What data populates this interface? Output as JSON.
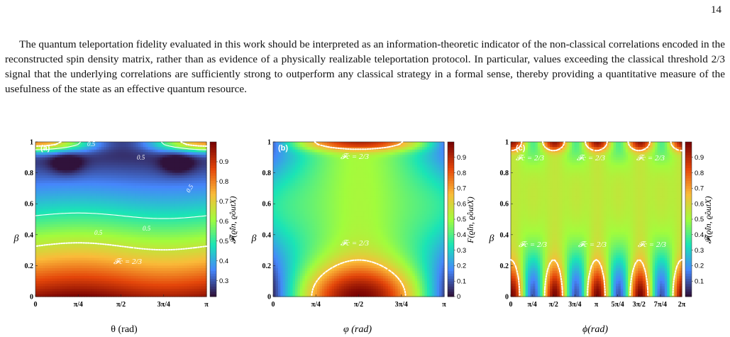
{
  "page_number": "14",
  "paragraph": "The quantum teleportation fidelity evaluated in this work should be interpreted as an information-theoretic indicator of the non-classical correlations encoded in the reconstructed spin density matrix, rather than as evidence of a physically realizable teleportation protocol. In particular, values exceeding the classical threshold 2/3 signal that the underlying correlations are sufficiently strong to outperform any classical strategy in a formal sense, thereby providing a quantitative measure of the usefulness of the state as an effective quantum resource.",
  "colors": {
    "colormap": [
      "#30123b",
      "#4686fb",
      "#1ae4b6",
      "#a2fc3c",
      "#fabb39",
      "#e4460a",
      "#7a0403"
    ],
    "contour": "#ffffff"
  },
  "chart_data": [
    {
      "type": "heatmap",
      "panel_label": "(a)",
      "xlabel": "θ (rad)",
      "ylabel": "β",
      "x_range": [
        0,
        3.14159
      ],
      "y_range": [
        0,
        1
      ],
      "xticks": [
        "0",
        "π/4",
        "π/2",
        "3π/4",
        "π"
      ],
      "yticks": [
        "0",
        "0.2",
        "0.4",
        "0.6",
        "0.8",
        "1"
      ],
      "colorbar": {
        "label": "𝓕(ϱ̂in, ϱ̂outX)",
        "ticks": [
          "0.3",
          "0.4",
          "0.5",
          "0.6",
          "0.7",
          "0.8",
          "0.9"
        ],
        "range": [
          0.22,
          1.0
        ]
      },
      "contours": [
        {
          "level": 0.5,
          "style": "solid",
          "labels": [
            "0.5",
            "0.5",
            "0.5",
            "0.5",
            "0.5"
          ]
        },
        {
          "level": 0.6667,
          "style": "dotted",
          "label": "𝓕c = 2/3"
        }
      ]
    },
    {
      "type": "heatmap",
      "panel_label": "(b)",
      "xlabel": "φ (rad)",
      "ylabel": "β",
      "x_range": [
        0,
        3.14159
      ],
      "y_range": [
        0,
        1
      ],
      "xticks": [
        "0",
        "π/4",
        "π/2",
        "3π/4",
        "π"
      ],
      "yticks": [
        "0",
        "0.2",
        "0.4",
        "0.6",
        "0.8",
        "1"
      ],
      "colorbar": {
        "label": "F(ϱ̂in, ϱ̂outX)",
        "ticks": [
          "0",
          "0.1",
          "0.2",
          "0.3",
          "0.4",
          "0.5",
          "0.6",
          "0.7",
          "0.8",
          "0.9"
        ],
        "range": [
          0,
          1.0
        ]
      },
      "contours": [
        {
          "level": 0.6667,
          "style": "dotted",
          "labels": [
            "𝓕c = 2/3",
            "𝓕c = 2/3"
          ]
        }
      ]
    },
    {
      "type": "heatmap",
      "panel_label": "(c)",
      "xlabel": "ϕ(rad)",
      "ylabel": "β",
      "x_range": [
        0,
        6.28319
      ],
      "y_range": [
        0,
        1
      ],
      "xticks": [
        "0",
        "π/4",
        "π/2",
        "3π/4",
        "π",
        "5π/4",
        "3π/2",
        "7π/4",
        "2π"
      ],
      "yticks": [
        "0",
        "0.2",
        "0.4",
        "0.6",
        "0.8",
        "1"
      ],
      "colorbar": {
        "label": "𝓕(ϱ̂in, ϱ̂outX)",
        "ticks": [
          "0.1",
          "0.2",
          "0.3",
          "0.4",
          "0.5",
          "0.6",
          "0.7",
          "0.8",
          "0.9"
        ],
        "range": [
          0,
          1.0
        ]
      },
      "contours": [
        {
          "level": 0.6667,
          "style": "dotted",
          "labels": [
            "𝓕c = 2/3",
            "𝓕c = 2/3",
            "𝓕c = 2/3",
            "𝓕c = 2/3",
            "𝓕c = 2/3",
            "𝓕c = 2/3"
          ]
        }
      ]
    }
  ]
}
